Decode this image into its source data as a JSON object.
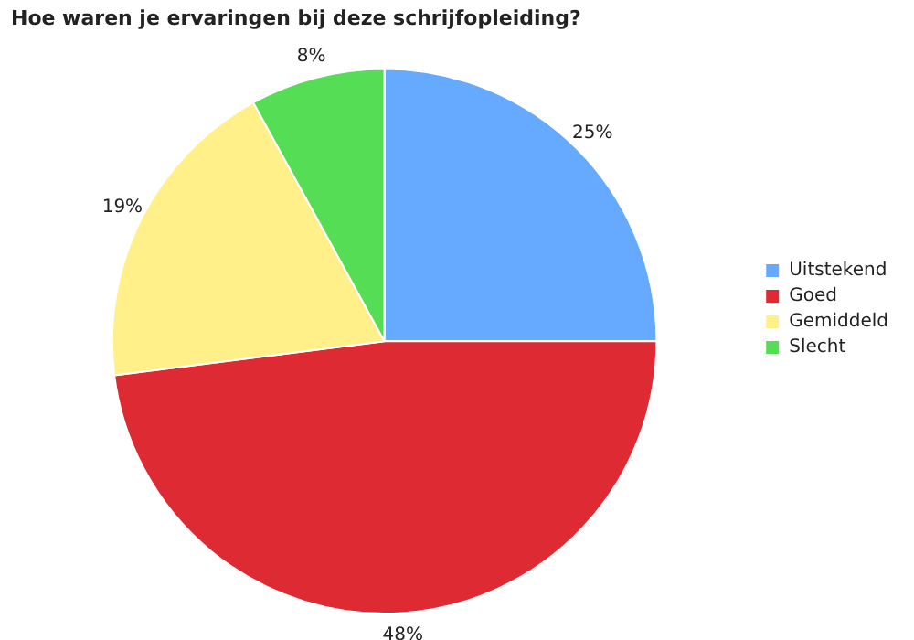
{
  "chart_data": {
    "type": "pie",
    "title": "Hoe waren je ervaringen bij deze schrijfopleiding?",
    "categories": [
      "Uitstekend",
      "Goed",
      "Gemiddeld",
      "Slecht"
    ],
    "values": [
      25,
      48,
      19,
      8
    ],
    "colors": [
      "#66aaff",
      "#dd2a33",
      "#fff08a",
      "#55dd55"
    ],
    "value_labels": [
      "25%",
      "48%",
      "19%",
      "8%"
    ],
    "legend": "right"
  }
}
